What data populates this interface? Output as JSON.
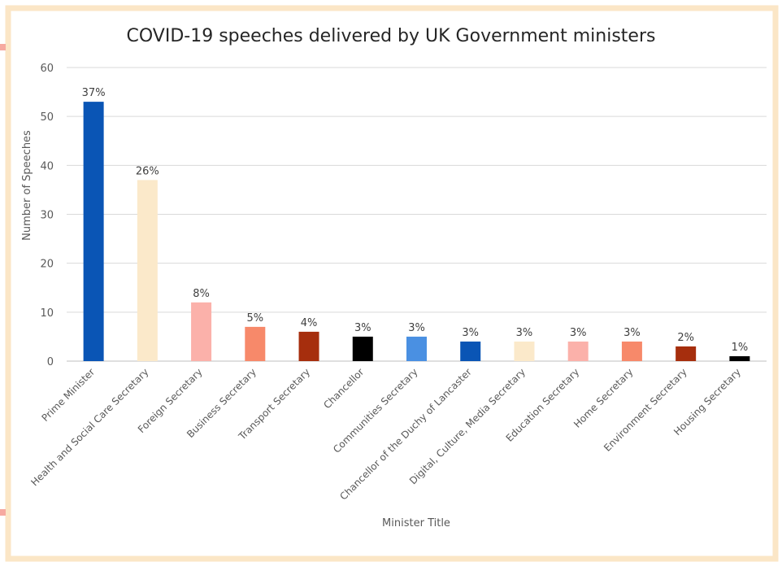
{
  "chart_data": {
    "type": "bar",
    "title": "COVID-19 speeches delivered by UK Government ministers",
    "xlabel": "Minister Title",
    "ylabel": "Number of Speeches",
    "ylim": [
      0,
      60
    ],
    "yticks": [
      "0",
      "10",
      "20",
      "30",
      "40",
      "50",
      "60"
    ],
    "grid": true,
    "legend": "none",
    "categories": [
      "Prime Minister",
      "Health and Social Care Secretary",
      "Foreign Secretary",
      "Business Secretary",
      "Transport Secretary",
      "Chancellor",
      "Communities Secretary",
      "Chancellor of the Duchy of Lancaster",
      "Digital, Culture, Media Secretary",
      "Education Secretary",
      "Home Secretary",
      "Environment Secretary",
      "Housing Secretary"
    ],
    "values": [
      53,
      37,
      12,
      7,
      6,
      5,
      5,
      4,
      4,
      4,
      4,
      3,
      1
    ],
    "data_labels": [
      "37%",
      "26%",
      "8%",
      "5%",
      "4%",
      "3%",
      "3%",
      "3%",
      "3%",
      "3%",
      "3%",
      "2%",
      "1%"
    ],
    "colors": [
      "#0a55b5",
      "#fbe9ca",
      "#fbb1aa",
      "#f7896a",
      "#a62e0d",
      "#000000",
      "#4a90e2",
      "#0a55b5",
      "#fbe9ca",
      "#fbb1aa",
      "#f7896a",
      "#a62e0d",
      "#000000"
    ]
  },
  "frame_color": "#fbe6c6",
  "edge_marks_color": "#f6a9a0"
}
